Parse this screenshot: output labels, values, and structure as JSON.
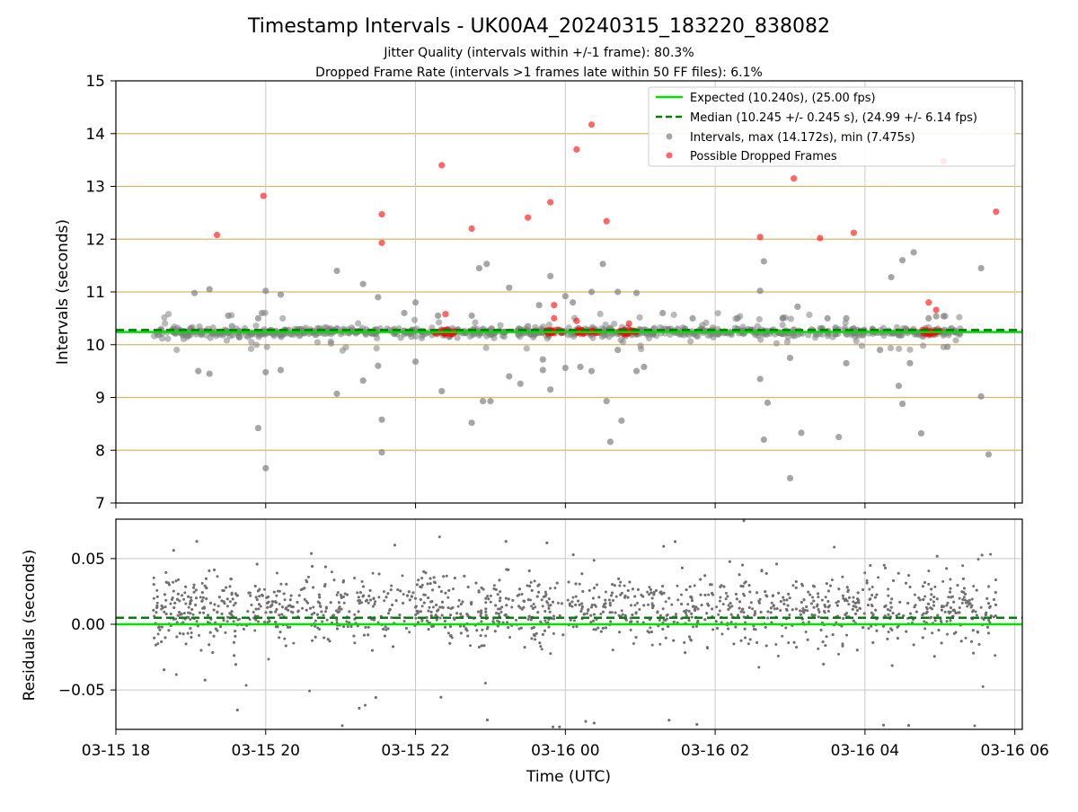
{
  "figure": {
    "title": "Timestamp Intervals - UK00A4_20240315_183220_838082",
    "subtitle_1": "Jitter Quality (intervals within +/-1 frame): 80.3%",
    "subtitle_2": "Dropped Frame Rate (intervals >1 frames late within 50 FF files): 6.1%"
  },
  "chart_data": [
    {
      "type": "scatter",
      "panel": "top",
      "ylabel": "Intervals (seconds)",
      "ylim": [
        7,
        15
      ],
      "yticks": [
        7,
        8,
        9,
        10,
        11,
        12,
        13,
        14,
        15
      ],
      "xlim_hours": [
        18.0,
        30.1
      ],
      "x_units": "hours since 03-15 00:00 UTC",
      "grid": "horizontal gold lines at each integer; vertical gray lines at x ticks",
      "legend_position": "top-right",
      "legend": [
        {
          "label": "Expected (10.240s), (25.00 fps)",
          "style": "solid line",
          "color": "#00e000"
        },
        {
          "label": "Median (10.245 +/- 0.245 s), (24.99 +/- 6.14 fps)",
          "style": "dashed line",
          "color": "#008000"
        },
        {
          "label": "Intervals, max (14.172s), min (7.475s)",
          "style": "marker",
          "color": "#808080"
        },
        {
          "label": "Possible Dropped Frames",
          "style": "marker",
          "color": "#ff0000"
        }
      ],
      "expected_line": 10.24,
      "median_line": 10.245,
      "colors": {
        "intervals": "#808080",
        "dropped": "#ff0000",
        "expected": "#00e000",
        "median": "#008000",
        "hgrid": "#d4b86a"
      },
      "dense_band": {
        "x_range": [
          18.5,
          29.3
        ],
        "y_center": 10.24,
        "y_spread": 0.12,
        "approx_count": 900
      },
      "outliers_gray": [
        [
          19.05,
          10.98
        ],
        [
          19.1,
          9.5
        ],
        [
          19.25,
          11.05
        ],
        [
          19.25,
          9.45
        ],
        [
          19.5,
          10.55
        ],
        [
          19.55,
          10.35
        ],
        [
          19.9,
          10.5
        ],
        [
          19.9,
          8.42
        ],
        [
          19.95,
          10.6
        ],
        [
          20.0,
          11.02
        ],
        [
          20.0,
          9.48
        ],
        [
          20.0,
          7.66
        ],
        [
          20.2,
          10.95
        ],
        [
          20.2,
          9.52
        ],
        [
          20.95,
          11.4
        ],
        [
          20.95,
          9.07
        ],
        [
          21.3,
          11.15
        ],
        [
          21.3,
          9.32
        ],
        [
          21.5,
          10.9
        ],
        [
          21.5,
          9.6
        ],
        [
          21.55,
          8.58
        ],
        [
          21.55,
          7.96
        ],
        [
          21.85,
          10.6
        ],
        [
          22.0,
          10.8
        ],
        [
          22.0,
          9.68
        ],
        [
          22.3,
          10.55
        ],
        [
          22.35,
          9.12
        ],
        [
          22.75,
          10.55
        ],
        [
          22.75,
          8.52
        ],
        [
          22.85,
          11.45
        ],
        [
          22.95,
          11.53
        ],
        [
          22.9,
          8.93
        ],
        [
          23.0,
          8.93
        ],
        [
          23.25,
          11.08
        ],
        [
          23.25,
          9.4
        ],
        [
          23.4,
          9.26
        ],
        [
          23.5,
          10.35
        ],
        [
          23.65,
          10.75
        ],
        [
          23.7,
          9.72
        ],
        [
          23.8,
          11.3
        ],
        [
          23.7,
          9.52
        ],
        [
          23.8,
          9.15
        ],
        [
          24.0,
          10.92
        ],
        [
          24.0,
          9.56
        ],
        [
          24.1,
          10.8
        ],
        [
          24.2,
          9.58
        ],
        [
          24.35,
          11.0
        ],
        [
          24.35,
          9.5
        ],
        [
          24.5,
          11.53
        ],
        [
          24.55,
          8.93
        ],
        [
          24.6,
          8.16
        ],
        [
          24.7,
          11.0
        ],
        [
          24.7,
          9.9
        ],
        [
          24.75,
          8.56
        ],
        [
          24.95,
          10.98
        ],
        [
          24.95,
          9.5
        ],
        [
          25.05,
          9.58
        ],
        [
          25.3,
          10.6
        ],
        [
          25.5,
          10.3
        ],
        [
          25.6,
          10.3
        ],
        [
          25.7,
          10.5
        ],
        [
          26.3,
          10.5
        ],
        [
          26.6,
          11.02
        ],
        [
          26.6,
          9.35
        ],
        [
          26.65,
          8.2
        ],
        [
          26.7,
          8.9
        ],
        [
          26.65,
          11.58
        ],
        [
          26.9,
          10.5
        ],
        [
          27.0,
          9.75
        ],
        [
          27.1,
          10.72
        ],
        [
          27.15,
          8.33
        ],
        [
          27.5,
          10.5
        ],
        [
          27.65,
          8.25
        ],
        [
          27.75,
          10.5
        ],
        [
          27.75,
          9.65
        ],
        [
          28.1,
          10.3
        ],
        [
          28.2,
          9.9
        ],
        [
          28.35,
          11.28
        ],
        [
          28.5,
          11.6
        ],
        [
          28.45,
          9.22
        ],
        [
          28.5,
          8.88
        ],
        [
          28.65,
          11.75
        ],
        [
          28.6,
          9.65
        ],
        [
          28.75,
          8.32
        ],
        [
          28.85,
          10.5
        ],
        [
          28.95,
          10.54
        ],
        [
          29.05,
          10.54
        ],
        [
          29.1,
          9.96
        ],
        [
          29.55,
          11.45
        ],
        [
          29.55,
          9.02
        ],
        [
          29.65,
          7.92
        ],
        [
          27.0,
          7.47
        ]
      ],
      "points_dropped": [
        [
          19.35,
          12.08
        ],
        [
          19.97,
          12.82
        ],
        [
          21.55,
          12.47
        ],
        [
          21.55,
          11.93
        ],
        [
          22.35,
          13.4
        ],
        [
          22.4,
          10.58
        ],
        [
          22.75,
          12.2
        ],
        [
          23.5,
          12.41
        ],
        [
          23.8,
          12.7
        ],
        [
          23.85,
          10.75
        ],
        [
          23.85,
          10.5
        ],
        [
          24.15,
          13.7
        ],
        [
          24.15,
          10.45
        ],
        [
          24.55,
          12.34
        ],
        [
          24.35,
          14.17
        ],
        [
          24.85,
          10.4
        ],
        [
          26.6,
          12.04
        ],
        [
          27.05,
          13.15
        ],
        [
          27.4,
          12.02
        ],
        [
          27.85,
          12.12
        ],
        [
          28.85,
          10.8
        ],
        [
          28.95,
          10.66
        ],
        [
          29.05,
          13.48
        ],
        [
          29.75,
          12.52
        ]
      ],
      "dropped_clusters": [
        [
          22.25,
          22.55
        ],
        [
          23.75,
          24.0
        ],
        [
          24.15,
          24.45
        ],
        [
          24.7,
          24.95
        ],
        [
          28.75,
          29.0
        ]
      ]
    },
    {
      "type": "scatter",
      "panel": "bottom",
      "ylabel": "Residuals (seconds)",
      "xlabel": "Time (UTC)",
      "ylim": [
        -0.08,
        0.08
      ],
      "yticks": [
        -0.05,
        0.0,
        0.05
      ],
      "ytick_labels": [
        "−0.05",
        "0.00",
        "0.05"
      ],
      "xticks_hours": [
        18,
        20,
        22,
        24,
        26,
        28,
        30
      ],
      "xtick_labels": [
        "03-15 18",
        "03-15 20",
        "03-15 22",
        "03-16 00",
        "03-16 02",
        "03-16 04",
        "03-16 06"
      ],
      "expected_residual": 0.0,
      "median_residual": 0.005,
      "point_color": "#707070",
      "x_range": [
        18.5,
        29.75
      ],
      "approx_count": 2400
    }
  ]
}
